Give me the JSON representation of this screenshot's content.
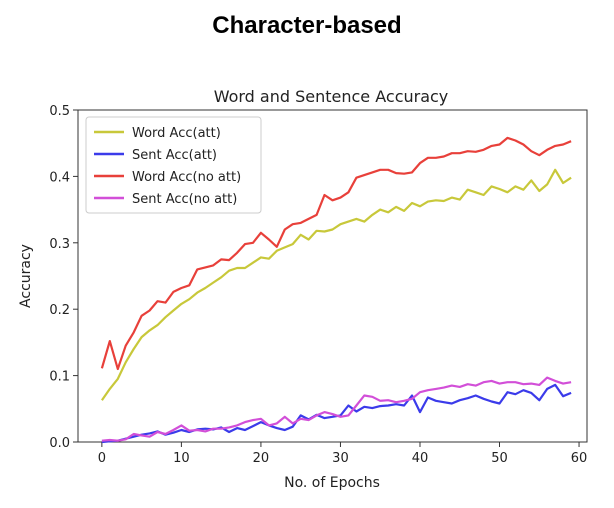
{
  "heading": "Character-based",
  "chart_data": {
    "type": "line",
    "title": "Word and Sentence Accuracy",
    "xlabel": "No. of Epochs",
    "ylabel": "Accuracy",
    "xlim": [
      -3,
      61
    ],
    "ylim": [
      0,
      0.5
    ],
    "xticks": [
      0,
      10,
      20,
      30,
      40,
      50,
      60
    ],
    "yticks": [
      0.0,
      0.1,
      0.2,
      0.3,
      0.4,
      0.5
    ],
    "xtick_labels": [
      "0",
      "10",
      "20",
      "30",
      "40",
      "50",
      "60"
    ],
    "ytick_labels": [
      "0.0",
      "0.1",
      "0.2",
      "0.3",
      "0.4",
      "0.5"
    ],
    "grid": false,
    "legend_position": "top-left",
    "x": [
      0,
      1,
      2,
      3,
      4,
      5,
      6,
      7,
      8,
      9,
      10,
      11,
      12,
      13,
      14,
      15,
      16,
      17,
      18,
      19,
      20,
      21,
      22,
      23,
      24,
      25,
      26,
      27,
      28,
      29,
      30,
      31,
      32,
      33,
      34,
      35,
      36,
      37,
      38,
      39,
      40,
      41,
      42,
      43,
      44,
      45,
      46,
      47,
      48,
      49,
      50,
      51,
      52,
      53,
      54,
      55,
      56,
      57,
      58,
      59
    ],
    "series": [
      {
        "name": "Word Acc(att)",
        "color": "#c8c83a",
        "values": [
          0.063,
          0.08,
          0.095,
          0.12,
          0.14,
          0.158,
          0.168,
          0.176,
          0.188,
          0.198,
          0.208,
          0.215,
          0.225,
          0.232,
          0.24,
          0.248,
          0.258,
          0.262,
          0.262,
          0.27,
          0.278,
          0.276,
          0.288,
          0.293,
          0.298,
          0.312,
          0.305,
          0.318,
          0.317,
          0.32,
          0.328,
          0.332,
          0.336,
          0.332,
          0.342,
          0.35,
          0.346,
          0.354,
          0.348,
          0.36,
          0.355,
          0.362,
          0.364,
          0.363,
          0.368,
          0.365,
          0.38,
          0.376,
          0.372,
          0.385,
          0.381,
          0.376,
          0.385,
          0.38,
          0.394,
          0.378,
          0.388,
          0.41,
          0.39,
          0.398
        ]
      },
      {
        "name": "Sent Acc(att)",
        "color": "#3b3bea",
        "values": [
          0.0,
          0.001,
          0.002,
          0.005,
          0.008,
          0.011,
          0.013,
          0.016,
          0.011,
          0.014,
          0.018,
          0.015,
          0.019,
          0.02,
          0.019,
          0.022,
          0.015,
          0.021,
          0.018,
          0.024,
          0.03,
          0.025,
          0.021,
          0.018,
          0.023,
          0.04,
          0.034,
          0.041,
          0.036,
          0.038,
          0.04,
          0.055,
          0.046,
          0.053,
          0.051,
          0.054,
          0.055,
          0.057,
          0.055,
          0.07,
          0.045,
          0.067,
          0.062,
          0.06,
          0.058,
          0.063,
          0.066,
          0.07,
          0.065,
          0.061,
          0.058,
          0.075,
          0.072,
          0.078,
          0.074,
          0.063,
          0.08,
          0.086,
          0.069,
          0.074
        ]
      },
      {
        "name": "Word Acc(no att)",
        "color": "#e8403a",
        "values": [
          0.111,
          0.152,
          0.11,
          0.145,
          0.165,
          0.19,
          0.198,
          0.212,
          0.21,
          0.226,
          0.232,
          0.236,
          0.26,
          0.263,
          0.266,
          0.275,
          0.274,
          0.285,
          0.298,
          0.3,
          0.315,
          0.305,
          0.294,
          0.32,
          0.328,
          0.33,
          0.336,
          0.342,
          0.372,
          0.364,
          0.368,
          0.376,
          0.398,
          0.402,
          0.406,
          0.41,
          0.41,
          0.405,
          0.404,
          0.406,
          0.42,
          0.428,
          0.428,
          0.43,
          0.435,
          0.435,
          0.438,
          0.437,
          0.44,
          0.446,
          0.448,
          0.458,
          0.454,
          0.448,
          0.438,
          0.432,
          0.44,
          0.446,
          0.448,
          0.453
        ]
      },
      {
        "name": "Sent Acc(no att)",
        "color": "#d24fd8",
        "values": [
          0.002,
          0.003,
          0.002,
          0.004,
          0.012,
          0.01,
          0.008,
          0.015,
          0.012,
          0.018,
          0.025,
          0.017,
          0.018,
          0.016,
          0.02,
          0.02,
          0.022,
          0.025,
          0.03,
          0.033,
          0.035,
          0.025,
          0.028,
          0.038,
          0.028,
          0.035,
          0.033,
          0.04,
          0.045,
          0.042,
          0.038,
          0.04,
          0.055,
          0.07,
          0.068,
          0.062,
          0.063,
          0.06,
          0.062,
          0.065,
          0.075,
          0.078,
          0.08,
          0.082,
          0.085,
          0.083,
          0.087,
          0.085,
          0.09,
          0.092,
          0.088,
          0.09,
          0.09,
          0.087,
          0.088,
          0.086,
          0.097,
          0.092,
          0.088,
          0.09
        ]
      }
    ]
  }
}
